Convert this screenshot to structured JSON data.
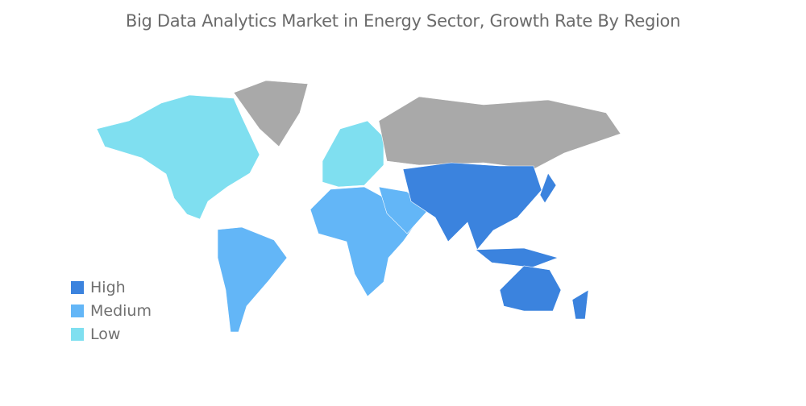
{
  "title": "Big Data Analytics Market in Energy Sector, Growth Rate By Region",
  "colors": {
    "High": "#3b83de",
    "Medium": "#63b6f7",
    "Low": "#7fdff0",
    "No data": "#a9a9a9"
  },
  "legend": [
    {
      "label": "High",
      "color": "#3b83de"
    },
    {
      "label": "Medium",
      "color": "#63b6f7"
    },
    {
      "label": "Low",
      "color": "#7fdff0"
    }
  ],
  "regions": [
    {
      "name": "North America",
      "level": "Low"
    },
    {
      "name": "Europe",
      "level": "Low"
    },
    {
      "name": "South America",
      "level": "Medium"
    },
    {
      "name": "Middle East and Africa",
      "level": "Medium"
    },
    {
      "name": "Asia Pacific",
      "level": "High"
    },
    {
      "name": "Russia",
      "level": "No data"
    },
    {
      "name": "Greenland",
      "level": "No data"
    }
  ]
}
